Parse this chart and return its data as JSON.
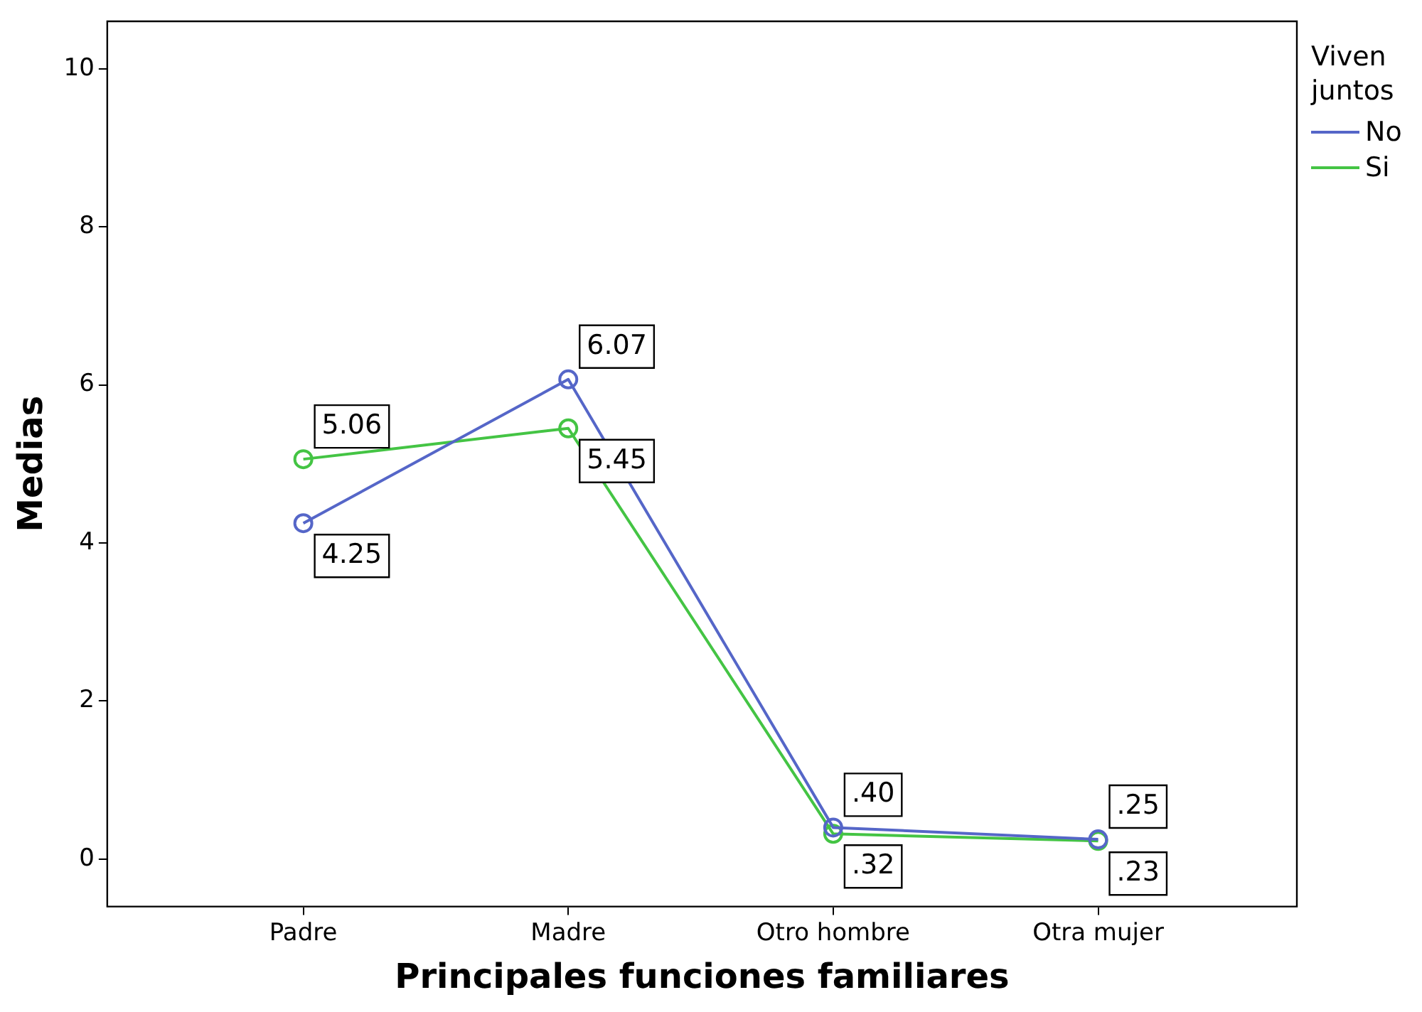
{
  "chart_data": {
    "type": "line",
    "xlabel": "Principales funciones familiares",
    "ylabel": "Medias",
    "categories": [
      "Padre",
      "Madre",
      "Otro hombre",
      "Otra mujer"
    ],
    "series": [
      {
        "name": "No",
        "color": "#5566c8",
        "values": [
          4.25,
          6.07,
          0.4,
          0.25
        ],
        "value_labels": [
          "4.25",
          "6.07",
          ".40",
          ".25"
        ]
      },
      {
        "name": "Si",
        "color": "#44c444",
        "values": [
          5.06,
          5.45,
          0.32,
          0.23
        ],
        "value_labels": [
          "5.06",
          "5.45",
          ".32",
          ".23"
        ]
      }
    ],
    "ylim": [
      -0.6,
      10.6
    ],
    "yticks": [
      0,
      2,
      4,
      6,
      8,
      10
    ],
    "grid": false,
    "legend": "top right",
    "legend_title": "Viven juntos",
    "marker": "circle",
    "line_style": "solid"
  }
}
